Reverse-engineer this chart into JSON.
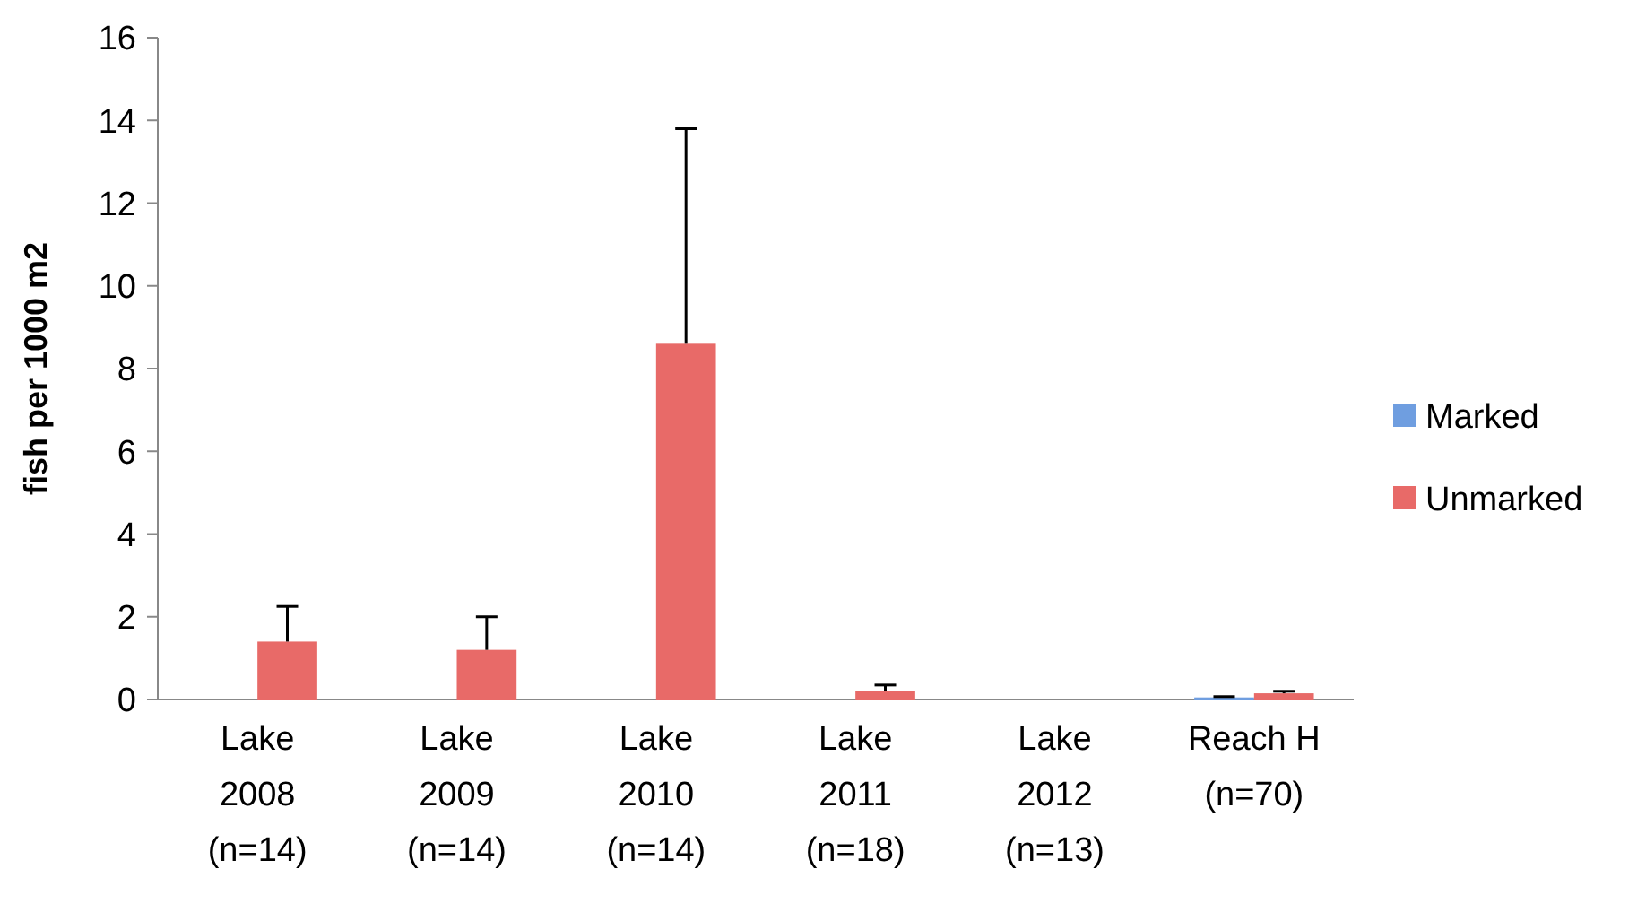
{
  "chart_data": {
    "type": "bar",
    "ylabel": "fish per 1000 m2",
    "categories": [
      "Lake\n2008\n(n=14)",
      "Lake\n2009\n(n=14)",
      "Lake\n2010\n(n=14)",
      "Lake\n2011\n(n=18)",
      "Lake\n2012\n(n=13)",
      "Reach H\n(n=70)"
    ],
    "series": [
      {
        "name": "Marked",
        "color": "#6f9ee0",
        "values": [
          0,
          0,
          0,
          0,
          0,
          0.05
        ],
        "errors": [
          null,
          null,
          null,
          null,
          null,
          [
            0.05,
            0.07
          ]
        ]
      },
      {
        "name": "Unmarked",
        "color": "#e86a68",
        "values": [
          1.4,
          1.2,
          8.6,
          0.2,
          0,
          0.15
        ],
        "errors": [
          [
            1.4,
            2.25
          ],
          [
            1.2,
            2.0
          ],
          [
            8.6,
            13.8
          ],
          [
            0.2,
            0.35
          ],
          null,
          [
            0.15,
            0.2
          ]
        ]
      }
    ],
    "ylim": [
      0,
      16
    ],
    "yticks": [
      0,
      2,
      4,
      6,
      8,
      10,
      12,
      14,
      16
    ],
    "grid": false,
    "legend": "right"
  }
}
